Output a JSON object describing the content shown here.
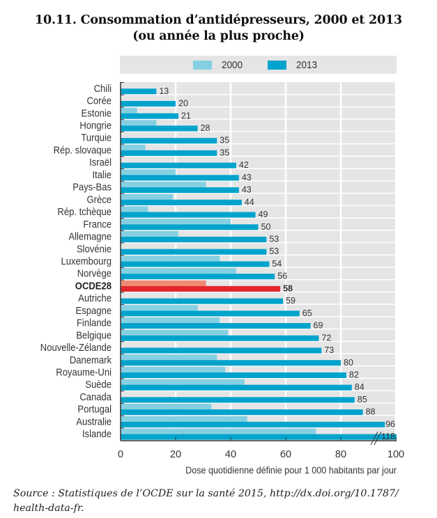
{
  "title_line1": "10.11.  Consommation d’antidépresseurs, 2000 et 2013",
  "title_line2": "(ou année la plus proche)",
  "source": "Source : Statistiques de l’OCDE sur la santé 2015, http://dx.doi.org/10.1787/ health-data-fr.",
  "colors": {
    "series_2000": "#84d0e2",
    "series_2013": "#00a3cc",
    "highlight_2000": "#f08a73",
    "highlight_2013": "#e3262b",
    "plot_bg": "#e5e5e5",
    "grid": "#ffffff"
  },
  "chart_data": {
    "type": "bar",
    "orientation": "horizontal",
    "title": "10.11. Consommation d’antidépresseurs, 2000 et 2013 (ou année la plus proche)",
    "xlabel": "Dose quotidienne définie pour 1 000 habitants par jour",
    "ylabel": "",
    "xlim": [
      0,
      100
    ],
    "xticks": [
      0,
      20,
      40,
      60,
      80,
      100
    ],
    "grid": true,
    "legend_position": "top",
    "axis_break": "Islande bar truncated at 100 (value 118)",
    "categories": [
      "Chili",
      "Corée",
      "Estonie",
      "Hongrie",
      "Turquie",
      "Rép. slovaque",
      "Israël",
      "Italie",
      "Pays-Bas",
      "Grèce",
      "Rép. tchèque",
      "France",
      "Allemagne",
      "Slovénie",
      "Luxembourg",
      "Norvège",
      "OCDE28",
      "Autriche",
      "Espagne",
      "Finlande",
      "Belgique",
      "Nouvelle-Zélande",
      "Danemark",
      "Royaume-Uni",
      "Suède",
      "Canada",
      "Portugal",
      "Australie",
      "Islande"
    ],
    "highlight": "OCDE28",
    "series": [
      {
        "name": "2000",
        "values": [
          null,
          null,
          6,
          13,
          null,
          9,
          null,
          20,
          31,
          19,
          10,
          40,
          21,
          null,
          36,
          42,
          31,
          null,
          28,
          36,
          39,
          null,
          35,
          38,
          45,
          null,
          33,
          46,
          71
        ]
      },
      {
        "name": "2013",
        "values": [
          13,
          20,
          21,
          28,
          35,
          35,
          42,
          43,
          43,
          44,
          49,
          50,
          53,
          53,
          54,
          56,
          58,
          59,
          65,
          69,
          72,
          73,
          80,
          82,
          84,
          85,
          88,
          96,
          118
        ]
      }
    ],
    "data_labels": [
      "13",
      "20",
      "21",
      "28",
      "35",
      "35",
      "42",
      "43",
      "43",
      "44",
      "49",
      "50",
      "53",
      "53",
      "54",
      "56",
      "58",
      "59",
      "65",
      "69",
      "72",
      "73",
      "80",
      "82",
      "84",
      "85",
      "88",
      "96",
      "118"
    ]
  }
}
